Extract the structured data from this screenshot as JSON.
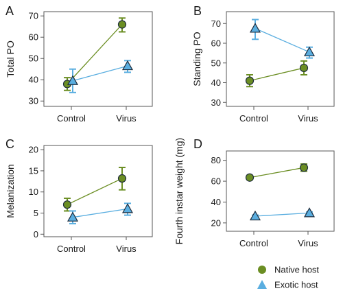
{
  "colors": {
    "native": "#6b8e23",
    "exotic": "#5aaee0",
    "marker_edge": "#1f2d3d",
    "axis": "#555555"
  },
  "legend": {
    "entries": [
      {
        "label": "Native host",
        "marker": "circle",
        "color": "#6b8e23"
      },
      {
        "label": "Exotic host",
        "marker": "triangle",
        "color": "#5aaee0"
      }
    ]
  },
  "chart_data": [
    {
      "panel": "A",
      "type": "line",
      "ylabel": "Total PO",
      "categories": [
        "Control",
        "Virus"
      ],
      "ylim": [
        27.5,
        72
      ],
      "yticks": [
        30,
        40,
        50,
        60,
        70
      ],
      "series": [
        {
          "name": "Native host",
          "marker": "circle",
          "values": [
            38,
            66
          ],
          "err_low": [
            35,
            62.5
          ],
          "err_high": [
            41,
            69
          ]
        },
        {
          "name": "Exotic host",
          "marker": "triangle",
          "values": [
            39.5,
            46.5
          ],
          "err_low": [
            34,
            43.5
          ],
          "err_high": [
            45,
            49
          ]
        }
      ]
    },
    {
      "panel": "B",
      "type": "line",
      "ylabel": "Standing PO",
      "categories": [
        "Control",
        "Virus"
      ],
      "ylim": [
        28,
        76
      ],
      "yticks": [
        30,
        40,
        50,
        60,
        70
      ],
      "series": [
        {
          "name": "Native host",
          "marker": "circle",
          "values": [
            41,
            47.5
          ],
          "err_low": [
            38,
            44
          ],
          "err_high": [
            44,
            51
          ]
        },
        {
          "name": "Exotic host",
          "marker": "triangle",
          "values": [
            67.5,
            55.5
          ],
          "err_low": [
            62,
            52.5
          ],
          "err_high": [
            72,
            58
          ]
        }
      ]
    },
    {
      "panel": "C",
      "type": "line",
      "ylabel": "Melanization",
      "categories": [
        "Control",
        "Virus"
      ],
      "ylim": [
        -0.6,
        21
      ],
      "yticks": [
        0,
        5,
        10,
        15,
        20
      ],
      "series": [
        {
          "name": "Native host",
          "marker": "circle",
          "values": [
            7,
            13.2
          ],
          "err_low": [
            5.5,
            10.5
          ],
          "err_high": [
            8.5,
            15.8
          ]
        },
        {
          "name": "Exotic host",
          "marker": "triangle",
          "values": [
            4,
            6
          ],
          "err_low": [
            2.5,
            4.5
          ],
          "err_high": [
            5.5,
            7.3
          ]
        }
      ]
    },
    {
      "panel": "D",
      "type": "line",
      "ylabel": "Fourth instar weight (mg)",
      "categories": [
        "Control",
        "Virus"
      ],
      "ylim": [
        12,
        89
      ],
      "yticks": [
        20,
        40,
        60,
        80
      ],
      "series": [
        {
          "name": "Native host",
          "marker": "circle",
          "values": [
            63.5,
            73
          ],
          "err_low": [
            61.5,
            69.5
          ],
          "err_high": [
            65.5,
            76.5
          ]
        },
        {
          "name": "Exotic host",
          "marker": "triangle",
          "values": [
            26.5,
            29.5
          ],
          "err_low": [
            25.5,
            28.5
          ],
          "err_high": [
            27.5,
            30.5
          ]
        }
      ]
    }
  ]
}
